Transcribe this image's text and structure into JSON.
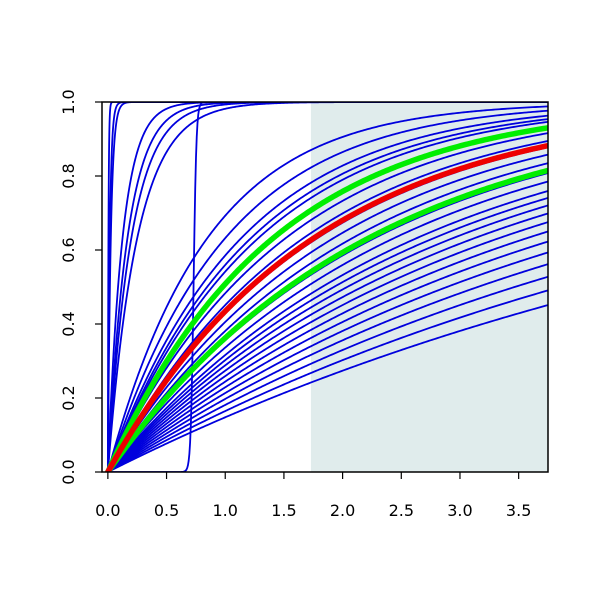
{
  "chart_data": {
    "type": "line",
    "title": "",
    "xlabel": "",
    "ylabel": "",
    "xlim": [
      -0.05,
      3.75
    ],
    "ylim": [
      0,
      1
    ],
    "grid": false,
    "x_ticks": [
      0.0,
      0.5,
      1.0,
      1.5,
      2.0,
      2.5,
      3.0,
      3.5
    ],
    "x_tick_labels": [
      "0.0",
      "0.5",
      "1.0",
      "1.5",
      "2.0",
      "2.5",
      "3.0",
      "3.5"
    ],
    "y_ticks": [
      0.0,
      0.2,
      0.4,
      0.6,
      0.8,
      1.0
    ],
    "y_tick_labels": [
      "0.0",
      "0.2",
      "0.4",
      "0.6",
      "0.8",
      "1.0"
    ],
    "shaded_region": {
      "x_from": 1.73,
      "x_to": 3.75,
      "color": "#e0ecec"
    },
    "colors": {
      "blue": "#0000dd",
      "red": "#ee0000",
      "green": "#00ee00"
    },
    "series": [
      {
        "color": "blue",
        "kind": "exp",
        "rate": 200
      },
      {
        "color": "blue",
        "kind": "exp",
        "rate": 60
      },
      {
        "color": "blue",
        "kind": "exp",
        "rate": 40
      },
      {
        "color": "blue",
        "kind": "exp",
        "rate": 8
      },
      {
        "color": "blue",
        "kind": "exp",
        "rate": 6
      },
      {
        "color": "blue",
        "kind": "exp",
        "rate": 5
      },
      {
        "color": "blue",
        "kind": "exp",
        "rate": 4
      },
      {
        "color": "blue",
        "kind": "step",
        "center": 0.73,
        "scale": 0.012
      },
      {
        "color": "blue",
        "kind": "exp",
        "rate": 1.18
      },
      {
        "color": "blue",
        "kind": "exp",
        "rate": 1.0
      },
      {
        "color": "blue",
        "kind": "exp",
        "rate": 0.88
      },
      {
        "color": "blue",
        "kind": "exp",
        "rate": 0.82
      },
      {
        "color": "blue",
        "kind": "exp",
        "rate": 0.78
      },
      {
        "color": "blue",
        "kind": "exp",
        "rate": 0.72
      },
      {
        "color": "blue",
        "kind": "exp",
        "rate": 0.66
      },
      {
        "color": "blue",
        "kind": "exp",
        "rate": 0.6
      },
      {
        "color": "blue",
        "kind": "exp",
        "rate": 0.56
      },
      {
        "color": "blue",
        "kind": "exp",
        "rate": 0.52
      },
      {
        "color": "blue",
        "kind": "exp",
        "rate": 0.48
      },
      {
        "color": "blue",
        "kind": "exp",
        "rate": 0.44
      },
      {
        "color": "blue",
        "kind": "exp",
        "rate": 0.41
      },
      {
        "color": "blue",
        "kind": "exp",
        "rate": 0.38
      },
      {
        "color": "blue",
        "kind": "exp",
        "rate": 0.36
      },
      {
        "color": "blue",
        "kind": "exp",
        "rate": 0.34
      },
      {
        "color": "blue",
        "kind": "exp",
        "rate": 0.32
      },
      {
        "color": "blue",
        "kind": "exp",
        "rate": 0.3
      },
      {
        "color": "blue",
        "kind": "exp",
        "rate": 0.28
      },
      {
        "color": "blue",
        "kind": "exp",
        "rate": 0.26
      },
      {
        "color": "blue",
        "kind": "exp",
        "rate": 0.24
      },
      {
        "color": "blue",
        "kind": "exp",
        "rate": 0.22
      },
      {
        "color": "blue",
        "kind": "exp",
        "rate": 0.2
      },
      {
        "color": "blue",
        "kind": "exp",
        "rate": 0.18
      },
      {
        "color": "blue",
        "kind": "exp",
        "rate": 0.16
      },
      {
        "color": "green",
        "kind": "exp",
        "rate": 0.71,
        "emphasis": true
      },
      {
        "color": "green",
        "kind": "exp",
        "rate": 0.45,
        "emphasis": true
      },
      {
        "color": "red",
        "kind": "exp",
        "rate": 0.57,
        "emphasis": true
      }
    ]
  }
}
